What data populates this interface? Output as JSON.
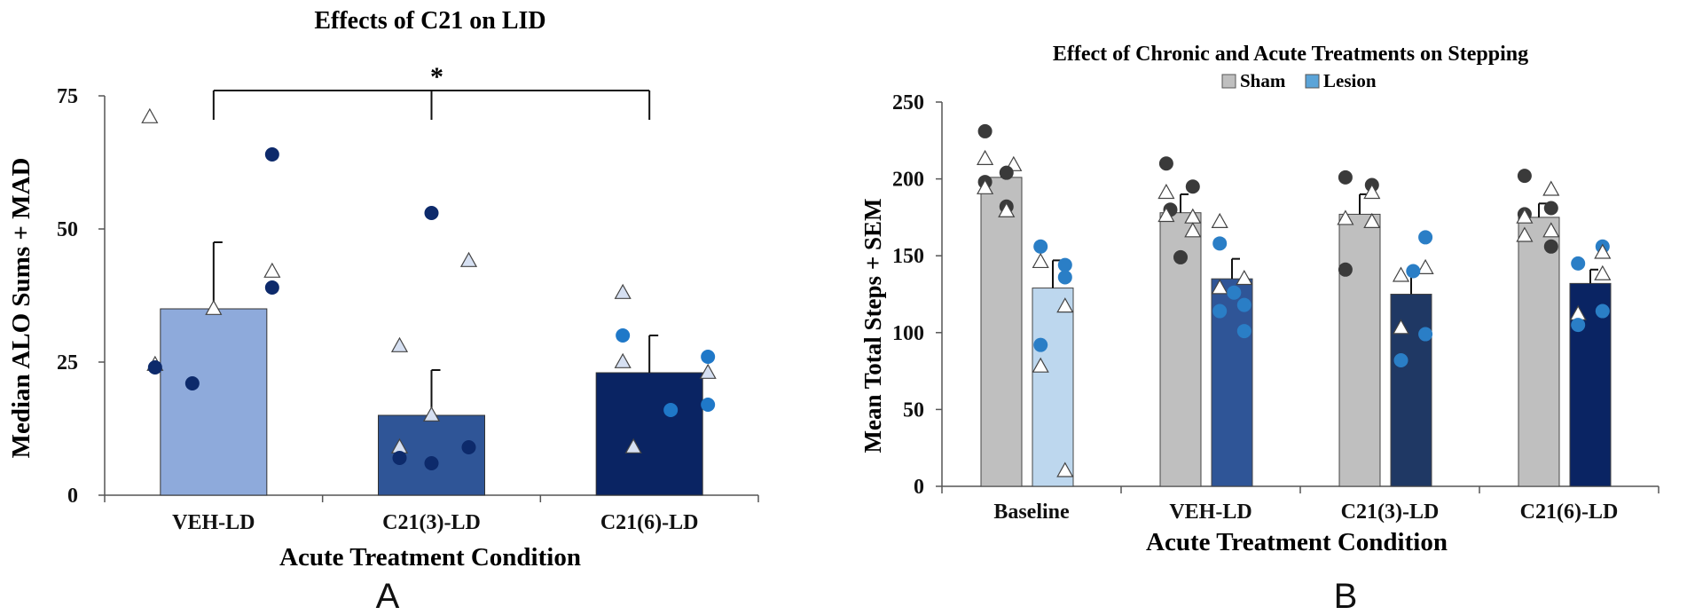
{
  "chart_data": [
    {
      "id": "A",
      "type": "bar",
      "panel_label": "A",
      "title": "Effects of C21 on LID",
      "xlabel": "Acute Treatment Condition",
      "ylabel": "Median ALO Sums + MAD",
      "ylim": [
        0,
        75
      ],
      "yticks": [
        0,
        25,
        50,
        75
      ],
      "grid": false,
      "categories": [
        "VEH-LD",
        "C21(3)-LD",
        "C21(6)-LD"
      ],
      "values": [
        35,
        15,
        23
      ],
      "errors": [
        12.5,
        8.5,
        7
      ],
      "bar_colors": [
        "#8eaadb",
        "#2f5597",
        "#0a2463"
      ],
      "significance": {
        "label": "*",
        "from": 0,
        "to": 2,
        "middle_tick": 1,
        "y": 76
      },
      "points": [
        [
          {
            "v": 71,
            "s": "tri",
            "d": -1.2
          },
          {
            "v": 64,
            "s": "dot",
            "d": 1.1
          },
          {
            "v": 42,
            "s": "tri",
            "d": 1.1
          },
          {
            "v": 39,
            "s": "dot",
            "d": 1.1
          },
          {
            "v": 35,
            "s": "tri",
            "d": 0
          },
          {
            "v": 24.5,
            "s": "tri",
            "d": -1.1
          },
          {
            "v": 24,
            "s": "dot",
            "d": -1.1
          },
          {
            "v": 21,
            "s": "dot",
            "d": -0.4
          }
        ],
        [
          {
            "v": 53,
            "s": "dot",
            "d": 0
          },
          {
            "v": 44,
            "s": "tri",
            "d": 0.7
          },
          {
            "v": 28,
            "s": "tri",
            "d": -0.6
          },
          {
            "v": 15,
            "s": "tri",
            "d": 0
          },
          {
            "v": 9,
            "s": "dot",
            "d": 0.7
          },
          {
            "v": 9,
            "s": "tri",
            "d": -0.6
          },
          {
            "v": 7,
            "s": "dot",
            "d": -0.6
          },
          {
            "v": 6,
            "s": "dot",
            "d": 0
          }
        ],
        [
          {
            "v": 38,
            "s": "tri",
            "d": -0.5
          },
          {
            "v": 30,
            "s": "dot",
            "d": -0.5
          },
          {
            "v": 26,
            "s": "dot",
            "d": 1.1
          },
          {
            "v": 25,
            "s": "tri",
            "d": -0.5
          },
          {
            "v": 23,
            "s": "tri",
            "d": 1.1
          },
          {
            "v": 17,
            "s": "dot",
            "d": 1.1
          },
          {
            "v": 16,
            "s": "dot",
            "d": 0.4
          },
          {
            "v": 9,
            "s": "tri",
            "d": -0.3
          }
        ]
      ]
    },
    {
      "id": "B",
      "type": "bar",
      "panel_label": "B",
      "title": "Effect of Chronic and Acute Treatments on Stepping",
      "xlabel": "Acute Treatment Condition",
      "ylabel": "Mean Total Steps + SEM",
      "ylim": [
        0,
        250
      ],
      "yticks": [
        0,
        50,
        100,
        150,
        200,
        250
      ],
      "grid": false,
      "legend": [
        {
          "name": "Sham",
          "color": "#bfbfbf"
        },
        {
          "name": "Lesion",
          "color": "#5ba4d8"
        }
      ],
      "categories": [
        "Baseline",
        "VEH-LD",
        "C21(3)-LD",
        "C21(6)-LD"
      ],
      "series": [
        {
          "name": "Sham",
          "values": [
            201,
            178,
            177,
            175
          ],
          "errors": [
            5,
            12,
            13,
            9
          ],
          "colors": [
            "#bfbfbf",
            "#bfbfbf",
            "#bfbfbf",
            "#bfbfbf"
          ]
        },
        {
          "name": "Lesion",
          "values": [
            129,
            135,
            125,
            132
          ],
          "errors": [
            18,
            13,
            14,
            9
          ],
          "colors": [
            "#bdd7ee",
            "#2f5597",
            "#1f3864",
            "#0a2463"
          ]
        }
      ],
      "points": [
        [
          [
            {
              "v": 231,
              "s": "dot",
              "d": -0.8
            },
            {
              "v": 213,
              "s": "tri",
              "d": -0.8
            },
            {
              "v": 209,
              "s": "tri",
              "d": 0.6
            },
            {
              "v": 204,
              "s": "dot",
              "d": 0.25
            },
            {
              "v": 198,
              "s": "dot",
              "d": -0.8
            },
            {
              "v": 194,
              "s": "tri",
              "d": -0.8
            },
            {
              "v": 182,
              "s": "dot",
              "d": 0.25
            },
            {
              "v": 179,
              "s": "tri",
              "d": 0.25
            }
          ],
          [
            {
              "v": 210,
              "s": "dot",
              "d": -0.7
            },
            {
              "v": 195,
              "s": "dot",
              "d": 0.6
            },
            {
              "v": 191,
              "s": "tri",
              "d": -0.7
            },
            {
              "v": 180,
              "s": "dot",
              "d": -0.5
            },
            {
              "v": 176,
              "s": "tri",
              "d": -0.7
            },
            {
              "v": 175,
              "s": "tri",
              "d": 0.6
            },
            {
              "v": 166,
              "s": "tri",
              "d": 0.6
            },
            {
              "v": 149,
              "s": "dot",
              "d": 0
            }
          ],
          [
            {
              "v": 201,
              "s": "dot",
              "d": -0.7
            },
            {
              "v": 196,
              "s": "dot",
              "d": 0.6
            },
            {
              "v": 191,
              "s": "tri",
              "d": 0.6
            },
            {
              "v": 174,
              "s": "tri",
              "d": -0.7
            },
            {
              "v": 172,
              "s": "tri",
              "d": 0.6
            },
            {
              "v": 141,
              "s": "dot",
              "d": -0.7
            }
          ],
          [
            {
              "v": 202,
              "s": "dot",
              "d": -0.7
            },
            {
              "v": 193,
              "s": "tri",
              "d": 0.6
            },
            {
              "v": 181,
              "s": "dot",
              "d": 0.6
            },
            {
              "v": 177,
              "s": "dot",
              "d": -0.7
            },
            {
              "v": 175,
              "s": "tri",
              "d": -0.7
            },
            {
              "v": 166,
              "s": "tri",
              "d": 0.6
            },
            {
              "v": 163,
              "s": "tri",
              "d": -0.7
            },
            {
              "v": 156,
              "s": "dot",
              "d": 0.6
            }
          ]
        ],
        [
          [
            {
              "v": 156,
              "s": "dot",
              "d": -0.6
            },
            {
              "v": 146,
              "s": "tri",
              "d": -0.6
            },
            {
              "v": 144,
              "s": "dot",
              "d": 0.6
            },
            {
              "v": 136,
              "s": "dot",
              "d": 0.6
            },
            {
              "v": 117,
              "s": "tri",
              "d": 0.6
            },
            {
              "v": 92,
              "s": "dot",
              "d": -0.6
            },
            {
              "v": 78,
              "s": "tri",
              "d": -0.6
            },
            {
              "v": 10,
              "s": "tri",
              "d": 0.6
            }
          ],
          [
            {
              "v": 172,
              "s": "tri",
              "d": -0.6
            },
            {
              "v": 158,
              "s": "dot",
              "d": -0.6
            },
            {
              "v": 135,
              "s": "tri",
              "d": 0.6
            },
            {
              "v": 129,
              "s": "tri",
              "d": -0.6
            },
            {
              "v": 126,
              "s": "dot",
              "d": 0.1
            },
            {
              "v": 118,
              "s": "dot",
              "d": 0.6
            },
            {
              "v": 114,
              "s": "dot",
              "d": -0.6
            },
            {
              "v": 101,
              "s": "dot",
              "d": 0.6
            }
          ],
          [
            {
              "v": 162,
              "s": "dot",
              "d": 0.7
            },
            {
              "v": 142,
              "s": "tri",
              "d": 0.7
            },
            {
              "v": 140,
              "s": "dot",
              "d": 0.1
            },
            {
              "v": 137,
              "s": "tri",
              "d": -0.5
            },
            {
              "v": 103,
              "s": "tri",
              "d": -0.5
            },
            {
              "v": 99,
              "s": "dot",
              "d": 0.7
            },
            {
              "v": 82,
              "s": "dot",
              "d": -0.5
            }
          ],
          [
            {
              "v": 156,
              "s": "dot",
              "d": 0.6
            },
            {
              "v": 152,
              "s": "tri",
              "d": 0.6
            },
            {
              "v": 145,
              "s": "dot",
              "d": -0.6
            },
            {
              "v": 138,
              "s": "tri",
              "d": 0.6
            },
            {
              "v": 114,
              "s": "dot",
              "d": 0.6
            },
            {
              "v": 112,
              "s": "tri",
              "d": -0.6
            },
            {
              "v": 105,
              "s": "dot",
              "d": -0.6
            }
          ]
        ]
      ]
    }
  ]
}
